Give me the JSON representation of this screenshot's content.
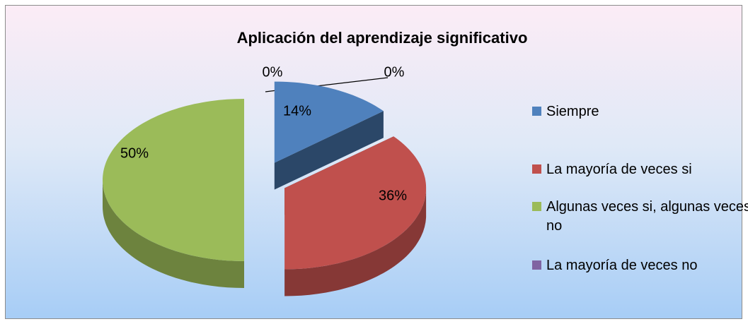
{
  "chart_data": {
    "type": "pie",
    "title": "Aplicación del aprendizaje significativo",
    "categories": [
      "Siempre",
      "La mayoría de veces si",
      "Algunas veces si, algunas veces no",
      "La mayoría de veces no",
      null
    ],
    "values": [
      14,
      36,
      50,
      0,
      0
    ],
    "value_labels": [
      "14%",
      "36%",
      "50%",
      "0%",
      "0%"
    ],
    "colors": [
      "#4f81bd",
      "#c0504d",
      "#9bbb59",
      "#8064a2",
      "#4bacc6"
    ],
    "legend": "right"
  }
}
